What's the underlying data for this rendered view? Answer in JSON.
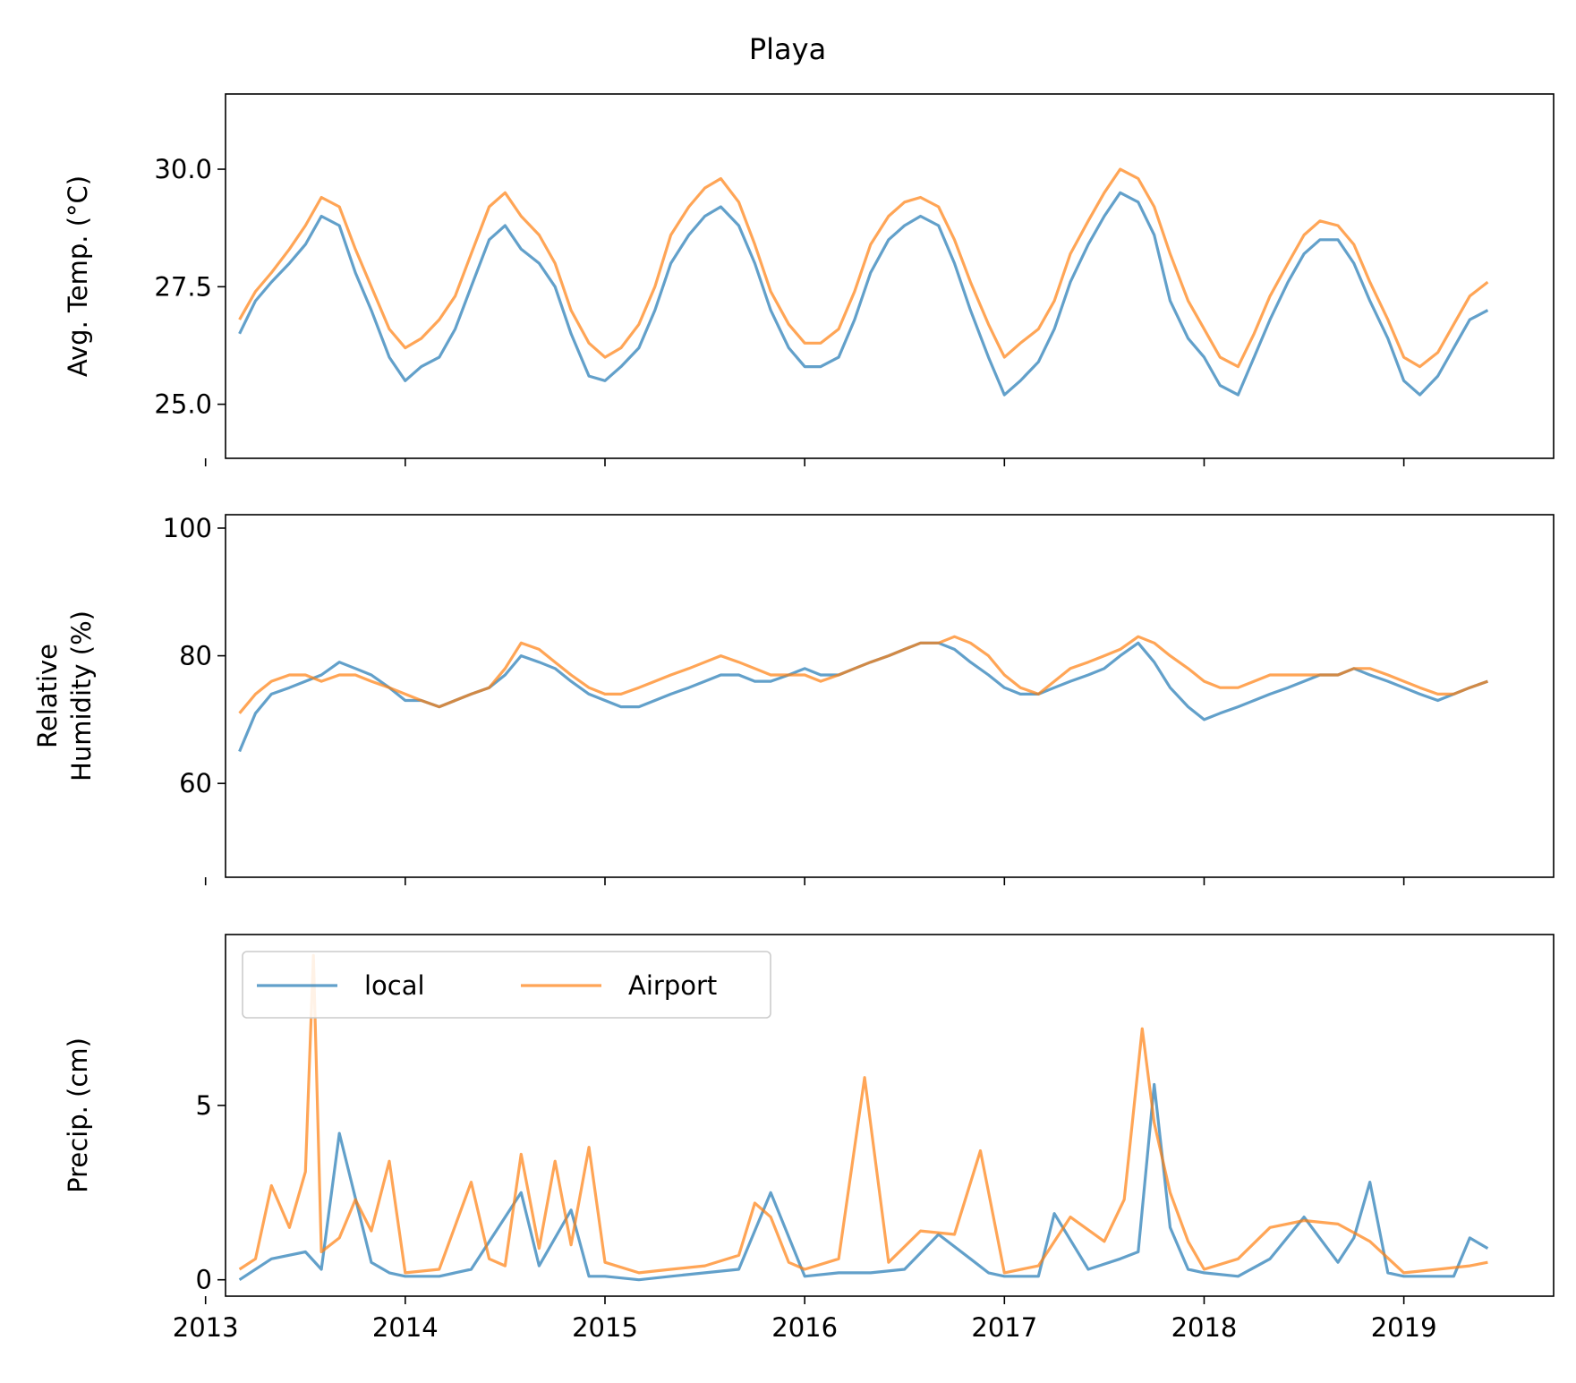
{
  "chart_data": {
    "title": "Playa",
    "type": "line",
    "x_tick_labels": [
      "2013",
      "2014",
      "2015",
      "2016",
      "2017",
      "2018",
      "2019"
    ],
    "xlim": [
      2013.1,
      2019.75
    ],
    "legend": {
      "placement": "upper-left",
      "entries": [
        "local",
        "Airport"
      ]
    },
    "series_colors": {
      "local": "#1f77b4",
      "Airport": "#ff7f0e"
    },
    "panels": [
      {
        "id": "temp",
        "ylabel": "Avg. Temp. (°C)",
        "ylabel_lines": [
          "Avg. Temp. (°C)"
        ],
        "ylim": [
          23.85,
          31.6
        ],
        "yticks": [
          25.0,
          27.5,
          30.0
        ],
        "ytick_labels": [
          "25.0",
          "27.5",
          "30.0"
        ],
        "series": [
          {
            "name": "local",
            "x": [
              2013.17,
              2013.25,
              2013.33,
              2013.42,
              2013.5,
              2013.58,
              2013.67,
              2013.75,
              2013.83,
              2013.92,
              2014.0,
              2014.08,
              2014.17,
              2014.25,
              2014.33,
              2014.42,
              2014.5,
              2014.58,
              2014.67,
              2014.75,
              2014.83,
              2014.92,
              2015.0,
              2015.08,
              2015.17,
              2015.25,
              2015.33,
              2015.42,
              2015.5,
              2015.58,
              2015.67,
              2015.75,
              2015.83,
              2015.92,
              2016.0,
              2016.08,
              2016.17,
              2016.25,
              2016.33,
              2016.42,
              2016.5,
              2016.58,
              2016.67,
              2016.75,
              2016.83,
              2016.92,
              2017.0,
              2017.08,
              2017.17,
              2017.25,
              2017.33,
              2017.42,
              2017.5,
              2017.58,
              2017.67,
              2017.75,
              2017.83,
              2017.92,
              2018.0,
              2018.08,
              2018.17,
              2018.25,
              2018.33,
              2018.42,
              2018.5,
              2018.58,
              2018.67,
              2018.75,
              2018.83,
              2018.92,
              2019.0,
              2019.08,
              2019.17,
              2019.25,
              2019.33,
              2019.42
            ],
            "y": [
              26.5,
              27.2,
              27.6,
              28.0,
              28.4,
              29.0,
              28.8,
              27.8,
              27.0,
              26.0,
              25.5,
              25.8,
              26.0,
              26.6,
              27.5,
              28.5,
              28.8,
              28.3,
              28.0,
              27.5,
              26.5,
              25.6,
              25.5,
              25.8,
              26.2,
              27.0,
              28.0,
              28.6,
              29.0,
              29.2,
              28.8,
              28.0,
              27.0,
              26.2,
              25.8,
              25.8,
              26.0,
              26.8,
              27.8,
              28.5,
              28.8,
              29.0,
              28.8,
              28.0,
              27.0,
              26.0,
              25.2,
              25.5,
              25.9,
              26.6,
              27.6,
              28.4,
              29.0,
              29.5,
              29.3,
              28.6,
              27.2,
              26.4,
              26.0,
              25.4,
              25.2,
              26.0,
              26.8,
              27.6,
              28.2,
              28.5,
              28.5,
              28.0,
              27.2,
              26.4,
              25.5,
              25.2,
              25.6,
              26.2,
              26.8,
              27.0
            ]
          },
          {
            "name": "Airport",
            "x": [
              2013.17,
              2013.25,
              2013.33,
              2013.42,
              2013.5,
              2013.58,
              2013.67,
              2013.75,
              2013.83,
              2013.92,
              2014.0,
              2014.08,
              2014.17,
              2014.25,
              2014.33,
              2014.42,
              2014.5,
              2014.58,
              2014.67,
              2014.75,
              2014.83,
              2014.92,
              2015.0,
              2015.08,
              2015.17,
              2015.25,
              2015.33,
              2015.42,
              2015.5,
              2015.58,
              2015.67,
              2015.75,
              2015.83,
              2015.92,
              2016.0,
              2016.08,
              2016.17,
              2016.25,
              2016.33,
              2016.42,
              2016.5,
              2016.58,
              2016.67,
              2016.75,
              2016.83,
              2016.92,
              2017.0,
              2017.08,
              2017.17,
              2017.25,
              2017.33,
              2017.42,
              2017.5,
              2017.58,
              2017.67,
              2017.75,
              2017.83,
              2017.92,
              2018.0,
              2018.08,
              2018.17,
              2018.25,
              2018.33,
              2018.42,
              2018.5,
              2018.58,
              2018.67,
              2018.75,
              2018.83,
              2018.92,
              2019.0,
              2019.08,
              2019.17,
              2019.25,
              2019.33,
              2019.42
            ],
            "y": [
              26.8,
              27.4,
              27.8,
              28.3,
              28.8,
              29.4,
              29.2,
              28.3,
              27.5,
              26.6,
              26.2,
              26.4,
              26.8,
              27.3,
              28.2,
              29.2,
              29.5,
              29.0,
              28.6,
              28.0,
              27.0,
              26.3,
              26.0,
              26.2,
              26.7,
              27.5,
              28.6,
              29.2,
              29.6,
              29.8,
              29.3,
              28.4,
              27.4,
              26.7,
              26.3,
              26.3,
              26.6,
              27.4,
              28.4,
              29.0,
              29.3,
              29.4,
              29.2,
              28.5,
              27.6,
              26.7,
              26.0,
              26.3,
              26.6,
              27.2,
              28.2,
              28.9,
              29.5,
              30.0,
              29.8,
              29.2,
              28.2,
              27.2,
              26.6,
              26.0,
              25.8,
              26.5,
              27.3,
              28.0,
              28.6,
              28.9,
              28.8,
              28.4,
              27.6,
              26.8,
              26.0,
              25.8,
              26.1,
              26.7,
              27.3,
              27.6
            ]
          }
        ]
      },
      {
        "id": "humidity",
        "ylabel": "Relative Humidity (%)",
        "ylabel_lines": [
          "Relative",
          "Humidity (%)"
        ],
        "ylim": [
          45.3,
          102.1
        ],
        "yticks": [
          60,
          80,
          100
        ],
        "ytick_labels": [
          "60",
          "80",
          "100"
        ],
        "series": [
          {
            "name": "local",
            "x": [
              2013.17,
              2013.25,
              2013.33,
              2013.42,
              2013.5,
              2013.58,
              2013.67,
              2013.75,
              2013.83,
              2013.92,
              2014.0,
              2014.08,
              2014.17,
              2014.25,
              2014.33,
              2014.42,
              2014.5,
              2014.58,
              2014.67,
              2014.75,
              2014.83,
              2014.92,
              2015.0,
              2015.08,
              2015.17,
              2015.25,
              2015.33,
              2015.42,
              2015.5,
              2015.58,
              2015.67,
              2015.75,
              2015.83,
              2015.92,
              2016.0,
              2016.08,
              2016.17,
              2016.25,
              2016.33,
              2016.42,
              2016.5,
              2016.58,
              2016.67,
              2016.75,
              2016.83,
              2016.92,
              2017.0,
              2017.08,
              2017.17,
              2017.25,
              2017.33,
              2017.42,
              2017.5,
              2017.58,
              2017.67,
              2017.75,
              2017.83,
              2017.92,
              2018.0,
              2018.08,
              2018.17,
              2018.25,
              2018.33,
              2018.42,
              2018.5,
              2018.58,
              2018.67,
              2018.75,
              2018.83,
              2018.92,
              2019.0,
              2019.08,
              2019.17,
              2019.25,
              2019.33,
              2019.42
            ],
            "y": [
              65,
              71,
              74,
              75,
              76,
              77,
              79,
              78,
              77,
              75,
              73,
              73,
              72,
              73,
              74,
              75,
              77,
              80,
              79,
              78,
              76,
              74,
              73,
              72,
              72,
              73,
              74,
              75,
              76,
              77,
              77,
              76,
              76,
              77,
              78,
              77,
              77,
              78,
              79,
              80,
              81,
              82,
              82,
              81,
              79,
              77,
              75,
              74,
              74,
              75,
              76,
              77,
              78,
              80,
              82,
              79,
              75,
              72,
              70,
              71,
              72,
              73,
              74,
              75,
              76,
              77,
              77,
              78,
              77,
              76,
              75,
              74,
              73,
              74,
              75,
              76
            ]
          },
          {
            "name": "Airport",
            "x": [
              2013.17,
              2013.25,
              2013.33,
              2013.42,
              2013.5,
              2013.58,
              2013.67,
              2013.75,
              2013.83,
              2013.92,
              2014.0,
              2014.08,
              2014.17,
              2014.25,
              2014.33,
              2014.42,
              2014.5,
              2014.58,
              2014.67,
              2014.75,
              2014.83,
              2014.92,
              2015.0,
              2015.08,
              2015.17,
              2015.25,
              2015.33,
              2015.42,
              2015.5,
              2015.58,
              2015.67,
              2015.75,
              2015.83,
              2015.92,
              2016.0,
              2016.08,
              2016.17,
              2016.25,
              2016.33,
              2016.42,
              2016.5,
              2016.58,
              2016.67,
              2016.75,
              2016.83,
              2016.92,
              2017.0,
              2017.08,
              2017.17,
              2017.25,
              2017.33,
              2017.42,
              2017.5,
              2017.58,
              2017.67,
              2017.75,
              2017.83,
              2017.92,
              2018.0,
              2018.08,
              2018.17,
              2018.25,
              2018.33,
              2018.42,
              2018.5,
              2018.58,
              2018.67,
              2018.75,
              2018.83,
              2018.92,
              2019.0,
              2019.08,
              2019.17,
              2019.25,
              2019.33,
              2019.42
            ],
            "y": [
              71,
              74,
              76,
              77,
              77,
              76,
              77,
              77,
              76,
              75,
              74,
              73,
              72,
              73,
              74,
              75,
              78,
              82,
              81,
              79,
              77,
              75,
              74,
              74,
              75,
              76,
              77,
              78,
              79,
              80,
              79,
              78,
              77,
              77,
              77,
              76,
              77,
              78,
              79,
              80,
              81,
              82,
              82,
              83,
              82,
              80,
              77,
              75,
              74,
              76,
              78,
              79,
              80,
              81,
              83,
              82,
              80,
              78,
              76,
              75,
              75,
              76,
              77,
              77,
              77,
              77,
              77,
              78,
              78,
              77,
              76,
              75,
              74,
              74,
              75,
              76
            ]
          }
        ]
      },
      {
        "id": "precip",
        "ylabel": "Precip. (cm)",
        "ylabel_lines": [
          "Precip. (cm)"
        ],
        "ylim": [
          -0.47,
          9.9
        ],
        "yticks": [
          0,
          5
        ],
        "ytick_labels": [
          "0",
          "5"
        ],
        "series": [
          {
            "name": "local",
            "x": [
              2013.17,
              2013.33,
              2013.5,
              2013.58,
              2013.67,
              2013.83,
              2013.92,
              2014.0,
              2014.17,
              2014.33,
              2014.58,
              2014.67,
              2014.83,
              2014.92,
              2015.0,
              2015.17,
              2015.33,
              2015.5,
              2015.67,
              2015.83,
              2016.0,
              2016.17,
              2016.33,
              2016.5,
              2016.67,
              2016.83,
              2016.92,
              2017.0,
              2017.17,
              2017.25,
              2017.42,
              2017.58,
              2017.67,
              2017.75,
              2017.83,
              2017.92,
              2018.0,
              2018.17,
              2018.33,
              2018.5,
              2018.67,
              2018.75,
              2018.83,
              2018.92,
              2019.0,
              2019.17,
              2019.25,
              2019.33,
              2019.42
            ],
            "y": [
              0.0,
              0.6,
              0.8,
              0.3,
              4.2,
              0.5,
              0.2,
              0.1,
              0.1,
              0.3,
              2.5,
              0.4,
              2.0,
              0.1,
              0.1,
              0.0,
              0.1,
              0.2,
              0.3,
              2.5,
              0.1,
              0.2,
              0.2,
              0.3,
              1.3,
              0.6,
              0.2,
              0.1,
              0.1,
              1.9,
              0.3,
              0.6,
              0.8,
              5.6,
              1.5,
              0.3,
              0.2,
              0.1,
              0.6,
              1.8,
              0.5,
              1.2,
              2.8,
              0.2,
              0.1,
              0.1,
              0.1,
              1.2,
              0.9
            ]
          },
          {
            "name": "Airport",
            "x": [
              2013.17,
              2013.25,
              2013.33,
              2013.42,
              2013.5,
              2013.54,
              2013.58,
              2013.67,
              2013.75,
              2013.83,
              2013.92,
              2014.0,
              2014.17,
              2014.33,
              2014.42,
              2014.5,
              2014.58,
              2014.67,
              2014.75,
              2014.83,
              2014.92,
              2015.0,
              2015.17,
              2015.33,
              2015.5,
              2015.67,
              2015.75,
              2015.83,
              2015.92,
              2016.0,
              2016.17,
              2016.3,
              2016.42,
              2016.58,
              2016.75,
              2016.88,
              2017.0,
              2017.17,
              2017.33,
              2017.5,
              2017.6,
              2017.69,
              2017.75,
              2017.83,
              2017.92,
              2018.0,
              2018.17,
              2018.33,
              2018.5,
              2018.67,
              2018.83,
              2019.0,
              2019.17,
              2019.33,
              2019.42
            ],
            "y": [
              0.3,
              0.6,
              2.7,
              1.5,
              3.1,
              9.3,
              0.8,
              1.2,
              2.3,
              1.4,
              3.4,
              0.2,
              0.3,
              2.8,
              0.6,
              0.4,
              3.6,
              0.9,
              3.4,
              1.0,
              3.8,
              0.5,
              0.2,
              0.3,
              0.4,
              0.7,
              2.2,
              1.8,
              0.5,
              0.3,
              0.6,
              5.8,
              0.5,
              1.4,
              1.3,
              3.7,
              0.2,
              0.4,
              1.8,
              1.1,
              2.3,
              7.2,
              4.5,
              2.5,
              1.1,
              0.3,
              0.6,
              1.5,
              1.7,
              1.6,
              1.1,
              0.2,
              0.3,
              0.4,
              0.5
            ]
          }
        ]
      }
    ]
  }
}
